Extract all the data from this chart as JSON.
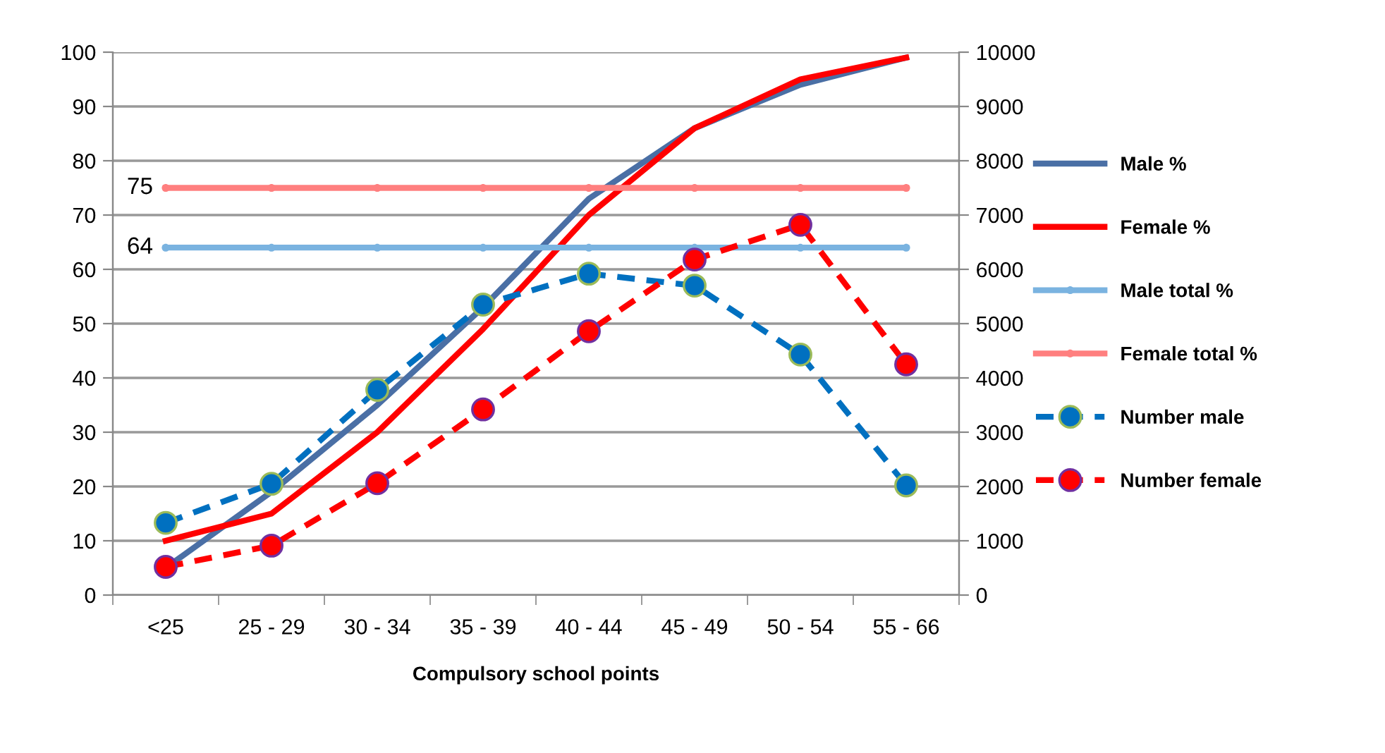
{
  "chart_data": {
    "type": "line",
    "xlabel": "Compulsory school points",
    "categories": [
      "<25",
      "25 - 29",
      "30 - 34",
      "35 - 39",
      "40 - 44",
      "45 - 49",
      "50 - 54",
      "55 - 66"
    ],
    "series": [
      {
        "name": "Male %",
        "color": "#4a6fa5",
        "values": [
          5,
          19,
          35,
          53,
          73,
          86,
          94,
          99
        ],
        "marker": "none",
        "line_style": "solid"
      },
      {
        "name": "Female %",
        "color": "#ff0000",
        "values": [
          10,
          15,
          30,
          49,
          70,
          86,
          95,
          99
        ],
        "marker": "none",
        "line_style": "solid"
      },
      {
        "name": "Male total %",
        "color": "#7ab3e0",
        "values": [
          64,
          64,
          64,
          64,
          64,
          64,
          64,
          64
        ],
        "marker": "circle",
        "line_style": "solid",
        "value_labels": [
          "64",
          null,
          null,
          null,
          null,
          null,
          null,
          null
        ]
      },
      {
        "name": "Female total %",
        "color": "#ff7f7f",
        "values": [
          75,
          75,
          75,
          75,
          75,
          75,
          75,
          75
        ],
        "marker": "circle",
        "line_style": "solid",
        "value_labels": [
          "75",
          null,
          null,
          null,
          null,
          null,
          null,
          null
        ]
      },
      {
        "name": "Number male",
        "color": "#0070c0",
        "axis": "y2",
        "values": [
          1330,
          2050,
          3780,
          5350,
          5920,
          5700,
          4430,
          2020
        ],
        "marker": "circle",
        "line_style": "dashed"
      },
      {
        "name": "Number female",
        "color": "#ff0000",
        "axis": "y2",
        "values": [
          520,
          910,
          2060,
          3420,
          4860,
          6180,
          6820,
          4250
        ],
        "marker": "circle",
        "line_style": "dashed"
      }
    ],
    "ylim": [
      0,
      100
    ],
    "yticks": [
      0,
      10,
      20,
      30,
      40,
      50,
      60,
      70,
      80,
      90,
      100
    ],
    "y2lim": [
      0,
      10000
    ],
    "y2ticks": [
      0,
      1000,
      2000,
      3000,
      4000,
      5000,
      6000,
      7000,
      8000,
      9000,
      10000
    ],
    "grid": "y",
    "legend": "right"
  }
}
